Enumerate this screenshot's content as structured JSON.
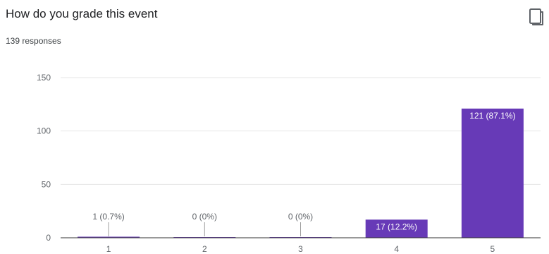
{
  "question": {
    "title": "How do you grade this event",
    "responses_label": "139 responses"
  },
  "icons": {
    "copy": "copy-icon"
  },
  "colors": {
    "bar": "#673ab7",
    "grid": "#e6e6e6",
    "axis": "#333333",
    "label": "#5f6368"
  },
  "chart_data": {
    "type": "bar",
    "title": "",
    "xlabel": "",
    "ylabel": "",
    "categories": [
      "1",
      "2",
      "3",
      "4",
      "5"
    ],
    "values": [
      1,
      0,
      0,
      17,
      121
    ],
    "data_labels": [
      "1 (0.7%)",
      "0 (0%)",
      "0 (0%)",
      "17 (12.2%)",
      "121 (87.1%)"
    ],
    "ylim": [
      0,
      150
    ],
    "yticks": [
      0,
      50,
      100,
      150
    ],
    "grid": true,
    "legend": "none"
  }
}
